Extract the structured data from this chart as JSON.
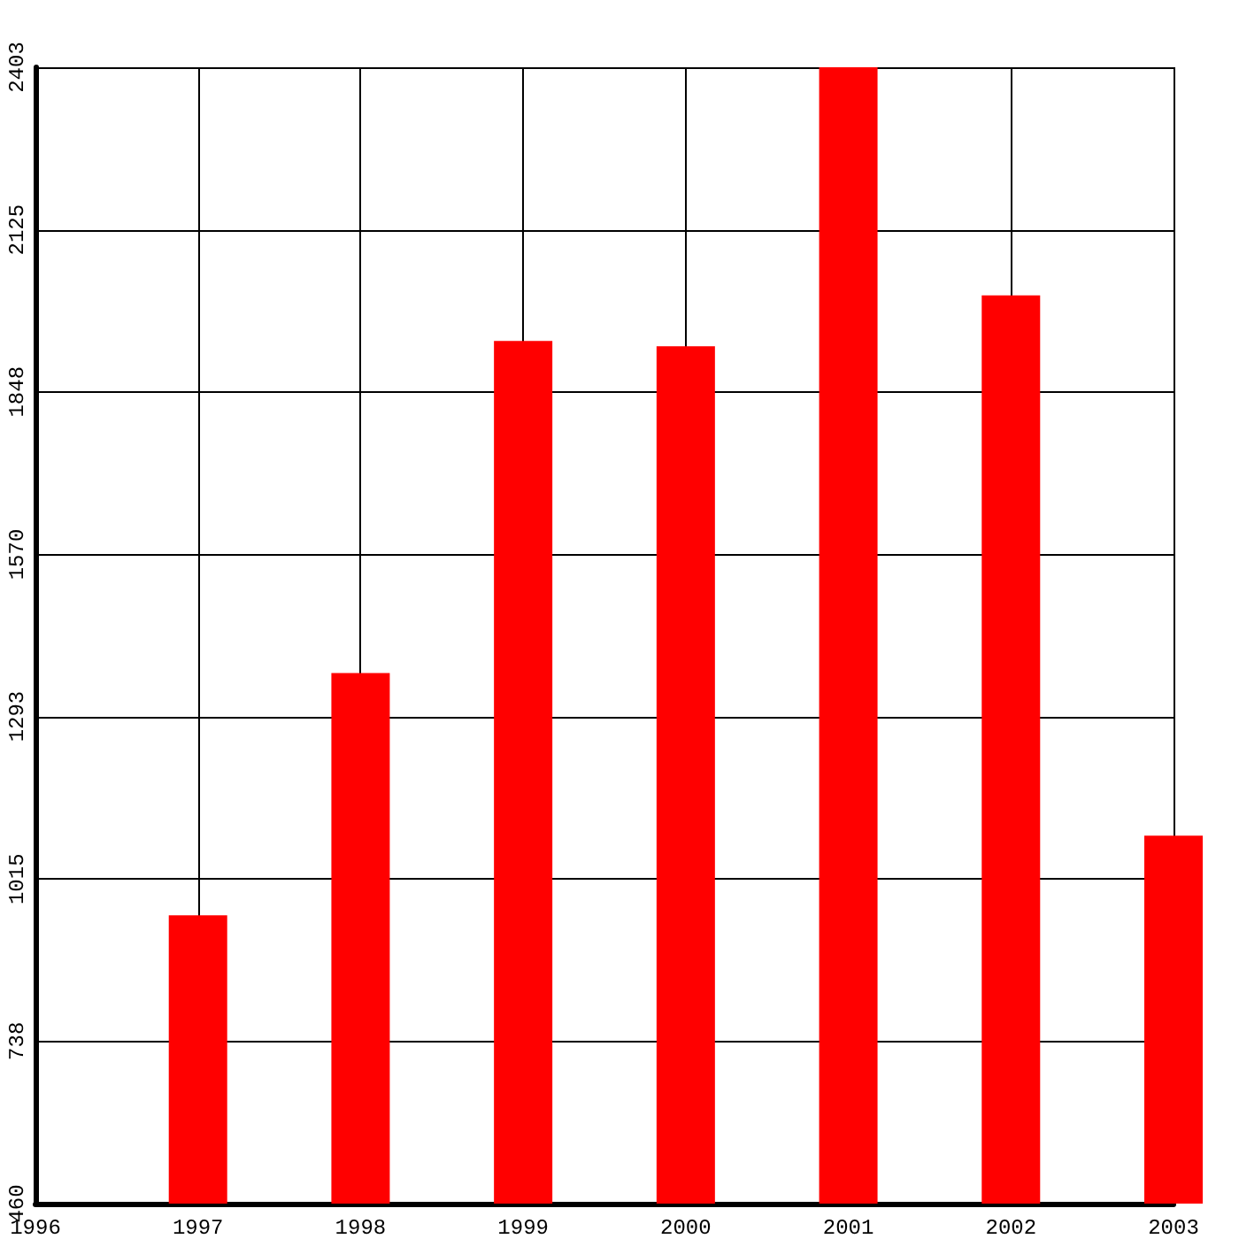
{
  "chart_data": {
    "type": "bar",
    "x": [
      1997,
      1998,
      1999,
      2000,
      2001,
      2002,
      2003
    ],
    "values": [
      953,
      1367,
      1935,
      1926,
      2403,
      2013,
      1089
    ],
    "color": "#ff0000",
    "xlim": [
      1996,
      2003
    ],
    "xticks": [
      1996,
      1997,
      1998,
      1999,
      2000,
      2001,
      2002,
      2003
    ],
    "ylim": [
      460,
      2403
    ],
    "yticks": [
      460,
      738,
      1015,
      1293,
      1570,
      1848,
      2125,
      2403
    ],
    "grid": true
  }
}
